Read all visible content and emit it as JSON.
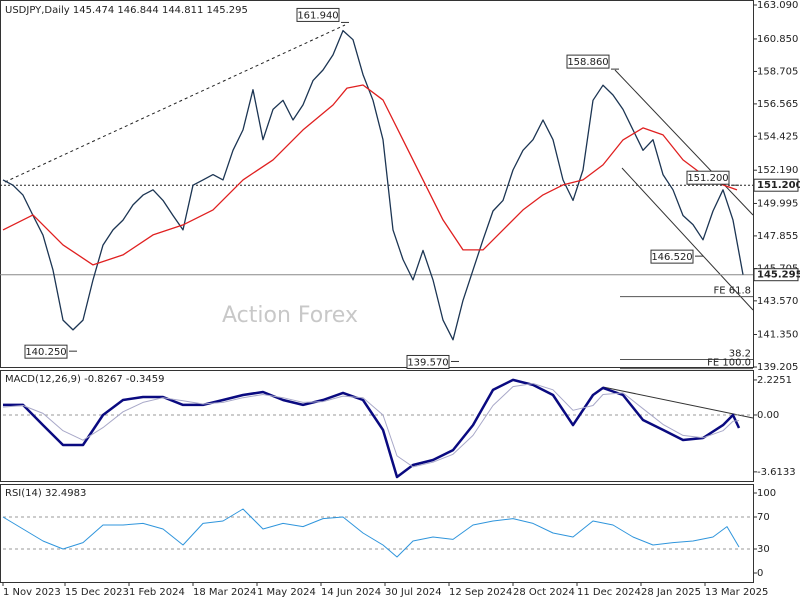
{
  "watermark": "Action Forex",
  "chart_data": [
    {
      "type": "line",
      "title": "USDJPY,Daily 145.474 146.844 144.811 145.295",
      "xlim": [
        0,
        375
      ],
      "ylim": [
        139.205,
        163.09
      ],
      "grid": false,
      "yticks": [
        {
          "value": 163.09,
          "label": "163.090"
        },
        {
          "value": 160.85,
          "label": "160.850"
        },
        {
          "value": 158.705,
          "label": "158.705"
        },
        {
          "value": 156.565,
          "label": "156.565"
        },
        {
          "value": 154.425,
          "label": "154.425"
        },
        {
          "value": 152.19,
          "label": "152.190"
        },
        {
          "value": 149.995,
          "label": "149.995"
        },
        {
          "value": 147.855,
          "label": "147.855"
        },
        {
          "value": 145.705,
          "label": "145.705"
        },
        {
          "value": 143.57,
          "label": "143.570"
        },
        {
          "value": 141.35,
          "label": "141.350"
        },
        {
          "value": 139.205,
          "label": "139.205"
        }
      ],
      "series": [
        {
          "color": "#1c3553",
          "x": [
            0,
            5,
            10,
            15,
            20,
            25,
            30,
            35,
            40,
            45,
            50,
            55,
            60,
            65,
            70,
            75,
            80,
            85,
            90,
            95,
            100,
            105,
            110,
            115,
            120,
            125,
            130,
            135,
            140,
            145,
            150,
            155,
            160,
            165,
            170,
            175,
            180,
            185,
            190,
            195,
            200,
            205,
            210,
            215,
            220,
            225,
            230,
            235,
            240,
            245,
            250,
            255,
            260,
            265,
            270,
            275,
            280,
            285,
            290,
            295,
            300,
            305,
            310,
            315,
            320,
            325,
            330,
            335,
            340,
            345,
            350,
            355,
            360,
            365,
            370
          ],
          "values": [
            151.55,
            151.2,
            150.55,
            149.2,
            147.9,
            145.6,
            142.3,
            141.65,
            142.3,
            144.95,
            147.25,
            148.25,
            148.9,
            149.9,
            150.55,
            150.9,
            150.2,
            149.2,
            148.25,
            151.2,
            151.55,
            151.9,
            151.55,
            153.5,
            154.85,
            157.5,
            154.2,
            156.2,
            156.8,
            155.5,
            156.5,
            158.1,
            158.8,
            159.8,
            161.4,
            160.8,
            158.5,
            156.8,
            154.2,
            148.25,
            146.3,
            144.95,
            146.9,
            144.95,
            142.3,
            141.0,
            143.6,
            145.6,
            147.6,
            149.5,
            150.2,
            152.2,
            153.5,
            154.2,
            155.5,
            154.2,
            151.55,
            150.2,
            152.2,
            156.8,
            157.8,
            157.15,
            156.2,
            154.85,
            153.5,
            154.2,
            151.9,
            150.9,
            149.2,
            148.6,
            147.6,
            149.5,
            150.9,
            148.9,
            145.3
          ]
        },
        {
          "color": "#e02020",
          "x": [
            0,
            15,
            30,
            45,
            60,
            75,
            90,
            105,
            120,
            135,
            150,
            165,
            172,
            180,
            190,
            200,
            210,
            220,
            230,
            240,
            250,
            260,
            270,
            280,
            290,
            300,
            310,
            320,
            330,
            340,
            350,
            360,
            367
          ],
          "values": [
            148.25,
            149.24,
            147.26,
            145.94,
            146.6,
            147.92,
            148.58,
            149.57,
            151.55,
            152.87,
            154.85,
            156.49,
            157.61,
            157.81,
            156.82,
            154.19,
            151.55,
            148.91,
            146.93,
            146.93,
            148.25,
            149.57,
            150.56,
            151.22,
            151.55,
            152.54,
            154.19,
            154.98,
            154.52,
            152.87,
            151.88,
            151.22,
            150.89
          ]
        }
      ],
      "annotations": [
        {
          "x": 171,
          "value": 161.94,
          "label": "161.940"
        },
        {
          "x": 35,
          "value": 140.25,
          "label": "140.250"
        },
        {
          "x": 226,
          "value": 139.57,
          "label": "139.570"
        },
        {
          "x": 306,
          "value": 158.86,
          "label": "158.860"
        },
        {
          "x": 366,
          "value": 151.2,
          "label": "151.200"
        },
        {
          "x": 348,
          "value": 146.52,
          "label": "146.520"
        }
      ],
      "levels": [
        {
          "value": 151.2,
          "label": "151.200",
          "style": "dotted"
        },
        {
          "value": 145.295,
          "label": "145.295",
          "style": "solid"
        }
      ],
      "fibs": [
        {
          "value": 143.85,
          "label": "FE 61.8"
        },
        {
          "value": 139.7,
          "label": "38.2"
        },
        {
          "value": 139.1,
          "label": "FE 100.0"
        }
      ]
    },
    {
      "type": "line",
      "title": "MACD(12,26,9) -0.8267 -0.3459",
      "xlim": [
        0,
        375
      ],
      "ylim": [
        -4.13,
        2.73
      ],
      "grid": true,
      "yticks": [
        2.2251,
        {
          "value": 0,
          "label": "0.00"
        },
        -3.6133
      ],
      "series": [
        {
          "color": "#0a0a80",
          "width": 2.5,
          "x": [
            0,
            10,
            20,
            30,
            40,
            50,
            60,
            70,
            80,
            90,
            100,
            110,
            120,
            130,
            140,
            150,
            160,
            170,
            180,
            190,
            197,
            205,
            215,
            225,
            235,
            245,
            255,
            265,
            275,
            285,
            295,
            300,
            310,
            320,
            330,
            340,
            350,
            360,
            365,
            368
          ],
          "values": [
            0.64,
            0.64,
            -0.64,
            -1.91,
            -1.91,
            0,
            0.95,
            1.14,
            1.14,
            0.64,
            0.64,
            0.95,
            1.27,
            1.46,
            0.95,
            0.64,
            0.95,
            1.4,
            0.95,
            -0.95,
            -3.94,
            -3.18,
            -2.86,
            -2.23,
            -0.64,
            1.59,
            2.23,
            1.91,
            1.27,
            -0.64,
            1.27,
            1.72,
            1.27,
            -0.32,
            -0.95,
            -1.59,
            -1.46,
            -0.64,
            0,
            -0.83
          ]
        },
        {
          "color": "#a8a8c8",
          "width": 1,
          "x": [
            0,
            10,
            20,
            30,
            40,
            50,
            60,
            70,
            80,
            90,
            100,
            110,
            120,
            130,
            140,
            150,
            160,
            170,
            180,
            190,
            197,
            205,
            215,
            225,
            235,
            245,
            255,
            265,
            275,
            285,
            295,
            300,
            310,
            320,
            330,
            340,
            350,
            360,
            365,
            368
          ],
          "values": [
            0.5,
            0.6,
            0.1,
            -1.0,
            -1.6,
            -0.8,
            0.2,
            0.8,
            1.1,
            0.9,
            0.7,
            0.8,
            1.1,
            1.3,
            1.1,
            0.8,
            0.85,
            1.2,
            1.1,
            0.0,
            -2.6,
            -3.3,
            -3.0,
            -2.5,
            -1.3,
            0.6,
            1.8,
            2.0,
            1.6,
            0.3,
            0.6,
            1.3,
            1.4,
            0.4,
            -0.6,
            -1.3,
            -1.45,
            -1.0,
            -0.4,
            -0.35
          ]
        }
      ]
    },
    {
      "type": "line",
      "title": "RSI(14) 32.4983",
      "xlim": [
        0,
        375
      ],
      "ylim": [
        -11.25,
        108.75
      ],
      "grid": true,
      "yticks": [
        100,
        70,
        30,
        0
      ],
      "xticks": [
        {
          "value": 0,
          "label": "1 Nov 2023"
        },
        {
          "value": 31,
          "label": "15 Dec 2023"
        },
        {
          "value": 63,
          "label": "1 Feb 2024"
        },
        {
          "value": 95,
          "label": "18 Mar 2024"
        },
        {
          "value": 127,
          "label": "1 May 2024"
        },
        {
          "value": 159,
          "label": "14 Jun 2024"
        },
        {
          "value": 191,
          "label": "30 Jul 2024"
        },
        {
          "value": 223,
          "label": "12 Sep 2024"
        },
        {
          "value": 255,
          "label": "28 Oct 2024"
        },
        {
          "value": 287,
          "label": "11 Dec 2024"
        },
        {
          "value": 319,
          "label": "28 Jan 2025"
        },
        {
          "value": 351,
          "label": "13 Mar 2025"
        }
      ],
      "series": [
        {
          "color": "#2f95dc",
          "width": 1,
          "x": [
            0,
            10,
            20,
            30,
            40,
            50,
            60,
            70,
            80,
            90,
            100,
            110,
            120,
            130,
            140,
            150,
            160,
            170,
            180,
            190,
            197,
            205,
            215,
            225,
            235,
            245,
            255,
            265,
            275,
            285,
            295,
            305,
            315,
            325,
            335,
            345,
            355,
            362,
            368
          ],
          "values": [
            70,
            55,
            40,
            30,
            38,
            60,
            60,
            62,
            55,
            35,
            62,
            65,
            80,
            55,
            62,
            58,
            68,
            70,
            50,
            35,
            20,
            40,
            45,
            42,
            60,
            65,
            68,
            62,
            50,
            45,
            65,
            60,
            45,
            35,
            38,
            40,
            45,
            58,
            32.5
          ]
        }
      ]
    }
  ]
}
